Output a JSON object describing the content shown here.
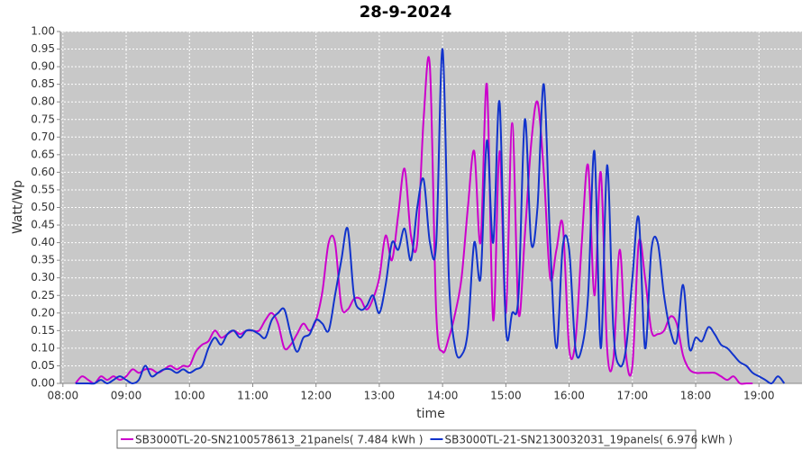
{
  "chart_data": {
    "type": "line",
    "title": "28-9-2024",
    "x_label": "time",
    "y_label": "Watt/Wp",
    "x": [
      8.2,
      8.3,
      8.4,
      8.5,
      8.6,
      8.7,
      8.8,
      8.9,
      9.0,
      9.1,
      9.2,
      9.3,
      9.4,
      9.5,
      9.6,
      9.7,
      9.8,
      9.9,
      10.0,
      10.1,
      10.2,
      10.3,
      10.4,
      10.5,
      10.6,
      10.7,
      10.8,
      10.9,
      11.0,
      11.1,
      11.2,
      11.3,
      11.4,
      11.5,
      11.6,
      11.7,
      11.8,
      11.9,
      12.0,
      12.1,
      12.2,
      12.3,
      12.4,
      12.5,
      12.6,
      12.7,
      12.8,
      12.9,
      13.0,
      13.1,
      13.2,
      13.3,
      13.4,
      13.5,
      13.6,
      13.7,
      13.8,
      13.9,
      14.0,
      14.1,
      14.2,
      14.3,
      14.4,
      14.5,
      14.6,
      14.7,
      14.8,
      14.9,
      15.0,
      15.1,
      15.2,
      15.3,
      15.4,
      15.5,
      15.6,
      15.7,
      15.8,
      15.9,
      16.0,
      16.1,
      16.2,
      16.3,
      16.4,
      16.5,
      16.6,
      16.7,
      16.8,
      16.9,
      17.0,
      17.1,
      17.2,
      17.3,
      17.4,
      17.5,
      17.6,
      17.7,
      17.8,
      17.9,
      18.0,
      18.1,
      18.2,
      18.3,
      18.4,
      18.5,
      18.6,
      18.7,
      18.8,
      18.9,
      19.0,
      19.1,
      19.2,
      19.3,
      19.4
    ],
    "series": [
      {
        "name": "SB3000TL-20-SN2100578613_21panels( 7.484 kWh )",
        "color": "#cc00cc",
        "values": [
          0.0,
          0.02,
          0.01,
          0.0,
          0.02,
          0.01,
          0.02,
          0.01,
          0.02,
          0.04,
          0.03,
          0.04,
          0.04,
          0.03,
          0.04,
          0.05,
          0.04,
          0.05,
          0.05,
          0.09,
          0.11,
          0.12,
          0.15,
          0.13,
          0.14,
          0.15,
          0.14,
          0.15,
          0.15,
          0.15,
          0.18,
          0.2,
          0.17,
          0.1,
          0.11,
          0.14,
          0.17,
          0.15,
          0.18,
          0.26,
          0.4,
          0.4,
          0.22,
          0.21,
          0.24,
          0.24,
          0.21,
          0.24,
          0.3,
          0.42,
          0.35,
          0.48,
          0.61,
          0.42,
          0.4,
          0.75,
          0.9,
          0.2,
          0.09,
          0.13,
          0.2,
          0.3,
          0.5,
          0.66,
          0.4,
          0.85,
          0.18,
          0.66,
          0.2,
          0.74,
          0.2,
          0.42,
          0.68,
          0.8,
          0.6,
          0.3,
          0.38,
          0.45,
          0.1,
          0.12,
          0.4,
          0.62,
          0.25,
          0.6,
          0.1,
          0.07,
          0.38,
          0.08,
          0.05,
          0.4,
          0.3,
          0.15,
          0.14,
          0.15,
          0.19,
          0.17,
          0.08,
          0.04,
          0.03,
          0.03,
          0.03,
          0.03,
          0.02,
          0.01,
          0.02,
          0.0,
          0.0,
          0.0,
          null,
          null,
          null,
          null,
          null
        ]
      },
      {
        "name": "SB3000TL-21-SN2130032031_19panels( 6.976 kWh )",
        "color": "#1133cc",
        "values": [
          0.0,
          0.0,
          0.0,
          0.0,
          0.01,
          0.0,
          0.01,
          0.02,
          0.01,
          0.0,
          0.01,
          0.05,
          0.02,
          0.03,
          0.04,
          0.04,
          0.03,
          0.04,
          0.03,
          0.04,
          0.05,
          0.1,
          0.13,
          0.11,
          0.14,
          0.15,
          0.13,
          0.15,
          0.15,
          0.14,
          0.13,
          0.18,
          0.2,
          0.21,
          0.14,
          0.09,
          0.13,
          0.14,
          0.18,
          0.17,
          0.15,
          0.25,
          0.35,
          0.44,
          0.25,
          0.21,
          0.22,
          0.25,
          0.2,
          0.28,
          0.4,
          0.38,
          0.44,
          0.35,
          0.5,
          0.58,
          0.4,
          0.4,
          0.95,
          0.3,
          0.1,
          0.08,
          0.15,
          0.4,
          0.3,
          0.69,
          0.4,
          0.8,
          0.16,
          0.2,
          0.25,
          0.75,
          0.4,
          0.5,
          0.85,
          0.4,
          0.1,
          0.39,
          0.38,
          0.1,
          0.1,
          0.25,
          0.66,
          0.1,
          0.62,
          0.15,
          0.05,
          0.1,
          0.3,
          0.47,
          0.1,
          0.38,
          0.4,
          0.25,
          0.15,
          0.12,
          0.28,
          0.1,
          0.13,
          0.12,
          0.16,
          0.14,
          0.11,
          0.1,
          0.08,
          0.06,
          0.05,
          0.03,
          0.02,
          0.01,
          0.0,
          0.02,
          0.0
        ]
      }
    ],
    "xlim": [
      7.96,
      19.68
    ],
    "xticks": [
      {
        "value": 8,
        "label": "08:00"
      },
      {
        "value": 9,
        "label": "09:00"
      },
      {
        "value": 10,
        "label": "10:00"
      },
      {
        "value": 11,
        "label": "11:00"
      },
      {
        "value": 12,
        "label": "12:00"
      },
      {
        "value": 13,
        "label": "13:00"
      },
      {
        "value": 14,
        "label": "14:00"
      },
      {
        "value": 15,
        "label": "15:00"
      },
      {
        "value": 16,
        "label": "16:00"
      },
      {
        "value": 17,
        "label": "17:00"
      },
      {
        "value": 18,
        "label": "18:00"
      },
      {
        "value": 19,
        "label": "19:00"
      }
    ],
    "ylim": [
      0,
      1
    ],
    "yticks": [
      {
        "value": 0,
        "label": "0.00"
      },
      {
        "value": 0.05,
        "label": "0.05"
      },
      {
        "value": 0.1,
        "label": "0.10"
      },
      {
        "value": 0.15,
        "label": "0.15"
      },
      {
        "value": 0.2,
        "label": "0.20"
      },
      {
        "value": 0.25,
        "label": "0.25"
      },
      {
        "value": 0.3,
        "label": "0.30"
      },
      {
        "value": 0.35,
        "label": "0.35"
      },
      {
        "value": 0.4,
        "label": "0.40"
      },
      {
        "value": 0.45,
        "label": "0.45"
      },
      {
        "value": 0.5,
        "label": "0.50"
      },
      {
        "value": 0.55,
        "label": "0.55"
      },
      {
        "value": 0.6,
        "label": "0.60"
      },
      {
        "value": 0.65,
        "label": "0.65"
      },
      {
        "value": 0.7,
        "label": "0.70"
      },
      {
        "value": 0.75,
        "label": "0.75"
      },
      {
        "value": 0.8,
        "label": "0.80"
      },
      {
        "value": 0.85,
        "label": "0.85"
      },
      {
        "value": 0.9,
        "label": "0.90"
      },
      {
        "value": 0.95,
        "label": "0.95"
      },
      {
        "value": 1,
        "label": "1.00"
      }
    ],
    "grid": true,
    "legend": "bottom"
  }
}
